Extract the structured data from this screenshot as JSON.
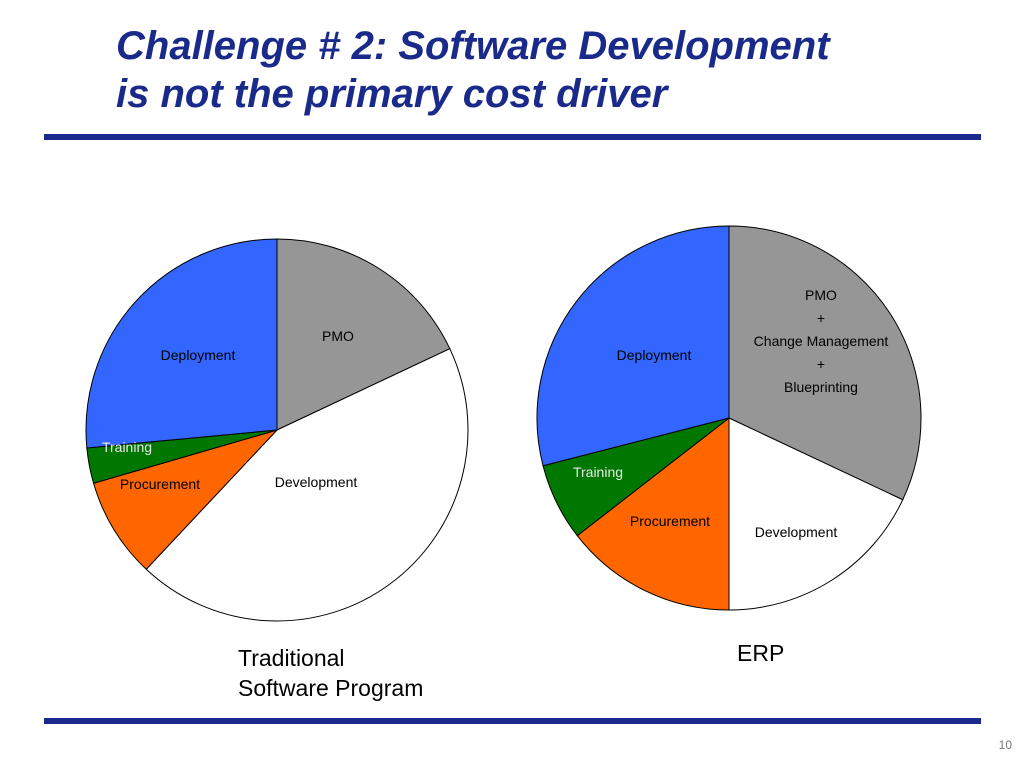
{
  "slide": {
    "title_line1": "Challenge # 2: Software Development",
    "title_line2": "is not the primary cost driver",
    "page_number": "10"
  },
  "colors": {
    "title": "#1a2a8a",
    "rule": "#1a2a8a",
    "pmo": "#969696",
    "development": "#ffffff",
    "procurement": "#ff6600",
    "training": "#007700",
    "deployment": "#3366ff"
  },
  "chart_data": [
    {
      "type": "pie",
      "caption_line1": "Traditional",
      "caption_line2": "Software Program",
      "slices": [
        {
          "key": "pmo",
          "label_lines": [
            "PMO"
          ],
          "value": 18
        },
        {
          "key": "development",
          "label_lines": [
            "Development"
          ],
          "value": 44
        },
        {
          "key": "procurement",
          "label_lines": [
            "Procurement"
          ],
          "value": 8.5
        },
        {
          "key": "training",
          "label_lines": [
            "Training"
          ],
          "value": 3
        },
        {
          "key": "deployment",
          "label_lines": [
            "Deployment"
          ],
          "value": 26.5
        }
      ]
    },
    {
      "type": "pie",
      "caption_line1": "ERP",
      "slices": [
        {
          "key": "pmo",
          "label_lines": [
            "PMO",
            "+",
            "Change Management",
            "+",
            "Blueprinting"
          ],
          "value": 32
        },
        {
          "key": "development",
          "label_lines": [
            "Development"
          ],
          "value": 18
        },
        {
          "key": "procurement",
          "label_lines": [
            "Procurement"
          ],
          "value": 14.5
        },
        {
          "key": "training",
          "label_lines": [
            "Training"
          ],
          "value": 6.5
        },
        {
          "key": "deployment",
          "label_lines": [
            "Deployment"
          ],
          "value": 29
        }
      ]
    }
  ]
}
